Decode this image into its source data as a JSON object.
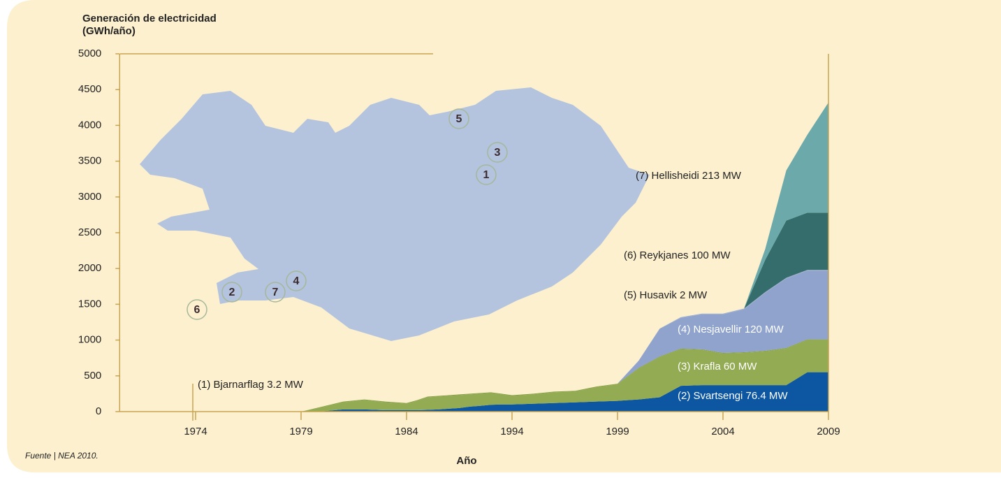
{
  "chart_data": {
    "type": "stacked_area",
    "ylabel": [
      "Generación de electricidad",
      "(GWh/año)"
    ],
    "xlabel": "Año",
    "source": "Fuente | NEA 2010.",
    "map_labels": [
      "5",
      "3",
      "1",
      "2",
      "7",
      "4",
      "6"
    ],
    "x": [
      1979,
      1980,
      1981,
      1982,
      1983,
      1984,
      1985,
      1986,
      1987,
      1988,
      1989,
      1990,
      1991,
      1992,
      1993,
      1994,
      1995,
      1996,
      1997,
      1998,
      1999,
      2000,
      2001,
      2002,
      2003,
      2004,
      2005,
      2006,
      2007,
      2008,
      2009
    ],
    "xlim": [
      1970.4,
      2009
    ],
    "xticks": [
      1974,
      1979,
      1984,
      1994,
      1999,
      2004,
      2009
    ],
    "ylim": [
      0,
      5000
    ],
    "yticks": [
      0,
      500,
      1000,
      1500,
      2000,
      2500,
      3000,
      3500,
      4000,
      4500,
      5000
    ],
    "series": [
      {
        "name": "(2) Svartsengi 76.4 MW",
        "color": "#0c56a2",
        "values": [
          0,
          5,
          30,
          30,
          20,
          20,
          20,
          25,
          30,
          40,
          50,
          70,
          80,
          95,
          100,
          100,
          110,
          120,
          130,
          140,
          150,
          170,
          200,
          360,
          370,
          370,
          370,
          370,
          370,
          550,
          550
        ]
      },
      {
        "name": "(3) Krafla 60 MW",
        "color": "#93ab52",
        "values": [
          0,
          55,
          100,
          130,
          110,
          90,
          130,
          175,
          180,
          180,
          180,
          170,
          170,
          165,
          140,
          120,
          130,
          150,
          150,
          200,
          230,
          430,
          560,
          510,
          490,
          440,
          450,
          470,
          510,
          450,
          450
        ]
      },
      {
        "name": "(1) Bjarnarflag 3.2 MW",
        "color": "#86a146",
        "values": [
          0,
          10,
          10,
          10,
          10,
          10,
          10,
          10,
          10,
          10,
          10,
          10,
          10,
          10,
          10,
          10,
          10,
          10,
          10,
          10,
          10,
          10,
          10,
          10,
          10,
          10,
          10,
          10,
          10,
          10,
          10
        ]
      },
      {
        "name": "(4) Nesjavellir 120 MW",
        "color": "#8fa3cd",
        "values": [
          0,
          0,
          0,
          0,
          0,
          0,
          0,
          0,
          0,
          0,
          0,
          0,
          0,
          0,
          0,
          0,
          0,
          0,
          0,
          0,
          0,
          100,
          390,
          430,
          490,
          540,
          600,
          810,
          970,
          960,
          960
        ]
      },
      {
        "name": "(5) Husavik 2 MW",
        "color": "#9aadd4",
        "values": [
          0,
          0,
          0,
          0,
          0,
          0,
          0,
          0,
          0,
          0,
          0,
          0,
          0,
          0,
          0,
          0,
          0,
          0,
          0,
          0,
          0,
          0,
          0,
          10,
          10,
          10,
          10,
          10,
          10,
          10,
          10
        ]
      },
      {
        "name": "(6) Reykjanes 100 MW",
        "color": "#356d6c",
        "values": [
          0,
          0,
          0,
          0,
          0,
          0,
          0,
          0,
          0,
          0,
          0,
          0,
          0,
          0,
          0,
          0,
          0,
          0,
          0,
          0,
          0,
          0,
          0,
          0,
          0,
          0,
          0,
          450,
          800,
          800,
          800
        ]
      },
      {
        "name": "(7) Hellisheidi 213 MW",
        "color": "#6ba9aa",
        "values": [
          0,
          0,
          0,
          0,
          0,
          0,
          0,
          0,
          0,
          0,
          0,
          0,
          0,
          0,
          0,
          0,
          0,
          0,
          0,
          0,
          0,
          0,
          0,
          0,
          0,
          0,
          0,
          150,
          700,
          1090,
          1540
        ]
      }
    ]
  }
}
